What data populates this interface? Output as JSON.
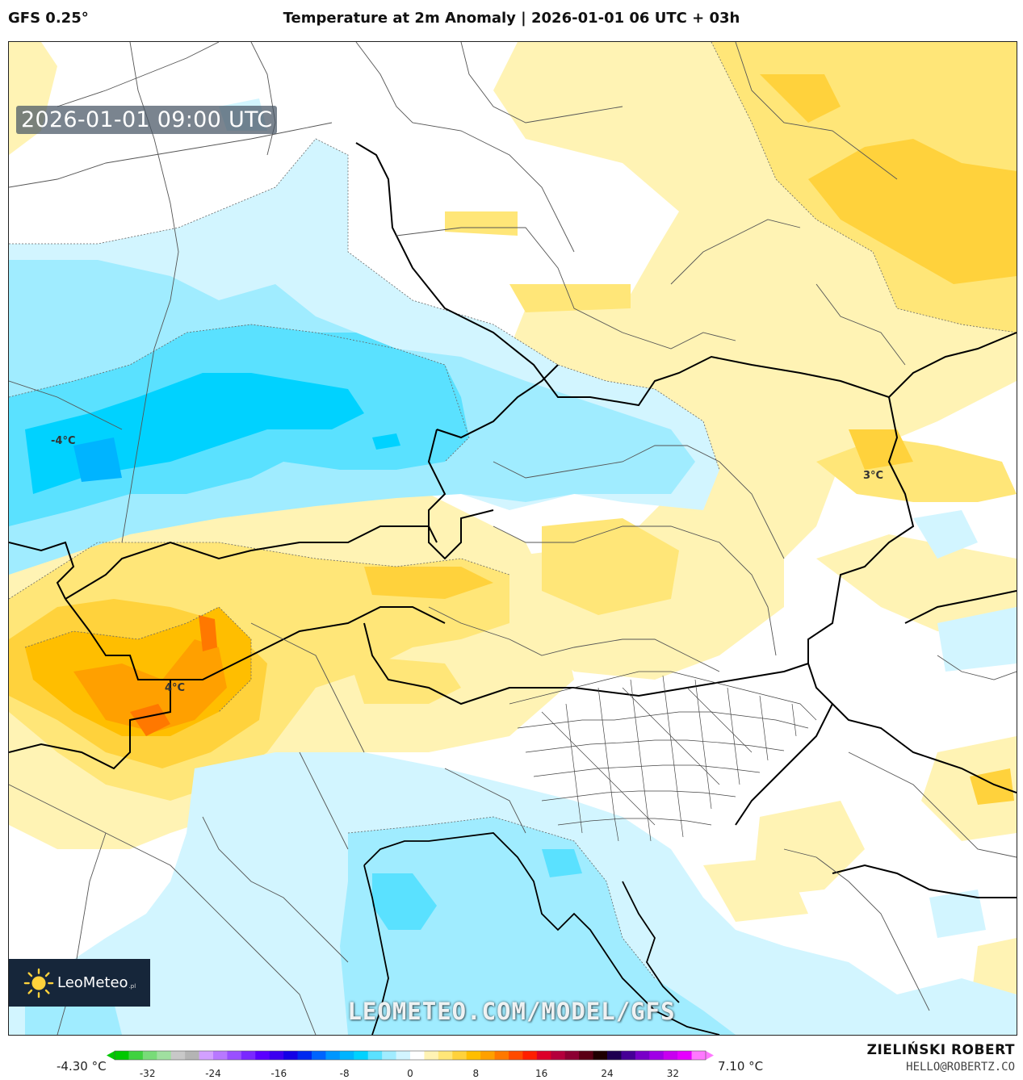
{
  "header": {
    "model": "GFS 0.25°",
    "title": "Temperature at 2m Anomaly | 2026-01-01 06 UTC + 03h"
  },
  "map": {
    "timestamp": "2026-01-01 09:00 UTC",
    "contour_labels": [
      "-4°C",
      "3°C",
      "4°C"
    ],
    "logo_name": "LeoMeteo",
    "logo_suffix": ".pl",
    "watermark": "LEOMETEO.COM/MODEL/GFS"
  },
  "colorbar": {
    "min_label": "-4.30 °C",
    "max_label": "7.10 °C",
    "ticks": [
      "-32",
      "-24",
      "-16",
      "-8",
      "0",
      "8",
      "16",
      "24",
      "32"
    ],
    "colors": [
      "#00c800",
      "#3fd23f",
      "#78dc78",
      "#a0e0a0",
      "#c8c8c8",
      "#b4b4b4",
      "#d2a0ff",
      "#b878ff",
      "#9a50ff",
      "#7a28ff",
      "#5a00ff",
      "#3c00f0",
      "#1400e6",
      "#0028f0",
      "#0064ff",
      "#0096ff",
      "#00b4ff",
      "#00d2ff",
      "#5ae1ff",
      "#a0ecff",
      "#d2f5ff",
      "#ffffff",
      "#fff3b4",
      "#ffe678",
      "#ffd23c",
      "#ffbe00",
      "#ffa000",
      "#ff7800",
      "#ff4b00",
      "#ff1e00",
      "#dc0028",
      "#b4003c",
      "#8c0032",
      "#5a0014",
      "#1e0000",
      "#1e0050",
      "#460096",
      "#7800c8",
      "#a000e6",
      "#c800f0",
      "#e600ff",
      "#ff78ff"
    ]
  },
  "credits": {
    "author": "ZIELIŃSKI ROBERT",
    "email": "HELLO@ROBERTZ.CO"
  }
}
